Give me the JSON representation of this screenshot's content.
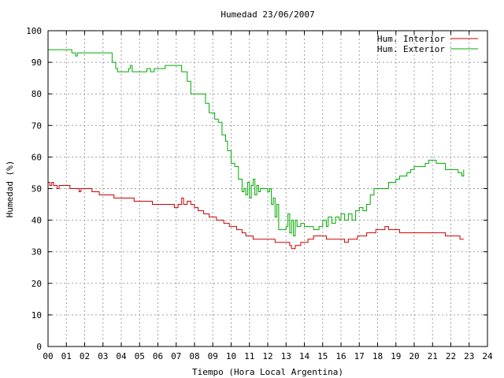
{
  "chart_data": {
    "type": "line",
    "title": "Humedad 23/06/2007",
    "xlabel": "Tiempo (Hora Local Argentina)",
    "ylabel": "Humedad (%)",
    "xlim": [
      0,
      24
    ],
    "ylim": [
      0,
      100
    ],
    "x_ticks": [
      "00",
      "01",
      "02",
      "03",
      "04",
      "05",
      "06",
      "07",
      "08",
      "09",
      "10",
      "11",
      "12",
      "13",
      "14",
      "15",
      "16",
      "17",
      "18",
      "19",
      "20",
      "21",
      "22",
      "23",
      "24"
    ],
    "y_ticks": [
      "0",
      "10",
      "20",
      "30",
      "40",
      "50",
      "60",
      "70",
      "80",
      "90",
      "100"
    ],
    "grid": true,
    "legend_position": "top-right",
    "series": [
      {
        "name": "Hum. Interior",
        "color": "#cc0000",
        "points": [
          [
            0,
            52
          ],
          [
            0.1,
            51
          ],
          [
            0.2,
            52
          ],
          [
            0.3,
            51
          ],
          [
            0.4,
            51
          ],
          [
            0.5,
            50
          ],
          [
            0.6,
            51
          ],
          [
            1.0,
            51
          ],
          [
            1.2,
            50
          ],
          [
            1.6,
            50
          ],
          [
            1.7,
            49
          ],
          [
            1.8,
            50
          ],
          [
            2.2,
            50
          ],
          [
            2.4,
            49
          ],
          [
            2.6,
            49
          ],
          [
            2.8,
            48
          ],
          [
            3.5,
            48
          ],
          [
            3.6,
            47
          ],
          [
            4.6,
            47
          ],
          [
            4.7,
            46
          ],
          [
            5.6,
            46
          ],
          [
            5.7,
            45
          ],
          [
            6.7,
            45
          ],
          [
            6.9,
            44
          ],
          [
            7.1,
            45
          ],
          [
            7.3,
            47
          ],
          [
            7.4,
            45
          ],
          [
            7.6,
            46
          ],
          [
            7.8,
            45
          ],
          [
            8.0,
            44
          ],
          [
            8.2,
            43
          ],
          [
            8.5,
            42
          ],
          [
            8.8,
            41
          ],
          [
            9.2,
            40
          ],
          [
            9.6,
            39
          ],
          [
            9.9,
            38
          ],
          [
            10.3,
            37
          ],
          [
            10.6,
            36
          ],
          [
            10.8,
            35
          ],
          [
            11.2,
            34
          ],
          [
            12.2,
            34
          ],
          [
            12.4,
            33
          ],
          [
            13.0,
            33
          ],
          [
            13.2,
            32
          ],
          [
            13.3,
            31
          ],
          [
            13.5,
            32
          ],
          [
            13.8,
            33
          ],
          [
            14.2,
            34
          ],
          [
            14.5,
            35
          ],
          [
            15.0,
            35
          ],
          [
            15.2,
            34
          ],
          [
            16.0,
            34
          ],
          [
            16.2,
            33
          ],
          [
            16.4,
            34
          ],
          [
            16.8,
            34
          ],
          [
            16.9,
            35
          ],
          [
            17.2,
            35
          ],
          [
            17.4,
            36
          ],
          [
            17.8,
            36
          ],
          [
            17.9,
            37
          ],
          [
            18.2,
            37
          ],
          [
            18.4,
            38
          ],
          [
            18.6,
            37
          ],
          [
            18.8,
            37
          ],
          [
            19.0,
            37
          ],
          [
            19.2,
            36
          ],
          [
            21.5,
            36
          ],
          [
            21.7,
            35
          ],
          [
            22.4,
            35
          ],
          [
            22.5,
            34
          ],
          [
            22.7,
            34
          ]
        ]
      },
      {
        "name": "Hum. Exterior",
        "color": "#00aa00",
        "points": [
          [
            0,
            94
          ],
          [
            1.2,
            94
          ],
          [
            1.3,
            93
          ],
          [
            1.4,
            93
          ],
          [
            1.5,
            92
          ],
          [
            1.6,
            93
          ],
          [
            3.2,
            93
          ],
          [
            3.5,
            90
          ],
          [
            3.7,
            88
          ],
          [
            3.8,
            87
          ],
          [
            4.2,
            87
          ],
          [
            4.4,
            88
          ],
          [
            4.5,
            89
          ],
          [
            4.6,
            87
          ],
          [
            5.3,
            87
          ],
          [
            5.4,
            88
          ],
          [
            5.6,
            87
          ],
          [
            5.8,
            88
          ],
          [
            6.3,
            88
          ],
          [
            6.4,
            89
          ],
          [
            7.1,
            89
          ],
          [
            7.3,
            87
          ],
          [
            7.6,
            84
          ],
          [
            7.8,
            80
          ],
          [
            8.3,
            80
          ],
          [
            8.6,
            77
          ],
          [
            8.8,
            74
          ],
          [
            9.1,
            72
          ],
          [
            9.3,
            71
          ],
          [
            9.5,
            67
          ],
          [
            9.7,
            65
          ],
          [
            9.8,
            62
          ],
          [
            10.0,
            58
          ],
          [
            10.2,
            57
          ],
          [
            10.4,
            53
          ],
          [
            10.6,
            49
          ],
          [
            10.7,
            50
          ],
          [
            10.8,
            48
          ],
          [
            10.9,
            52
          ],
          [
            11.0,
            47
          ],
          [
            11.1,
            51
          ],
          [
            11.2,
            53
          ],
          [
            11.3,
            48
          ],
          [
            11.4,
            51
          ],
          [
            11.5,
            49
          ],
          [
            11.6,
            50
          ],
          [
            11.8,
            50
          ],
          [
            12.0,
            49
          ],
          [
            12.1,
            50
          ],
          [
            12.2,
            45
          ],
          [
            12.3,
            47
          ],
          [
            12.4,
            41
          ],
          [
            12.5,
            45
          ],
          [
            12.6,
            37
          ],
          [
            13.0,
            38
          ],
          [
            13.1,
            42
          ],
          [
            13.2,
            36
          ],
          [
            13.3,
            40
          ],
          [
            13.4,
            35
          ],
          [
            13.5,
            40
          ],
          [
            13.6,
            38
          ],
          [
            13.8,
            39
          ],
          [
            14.0,
            38
          ],
          [
            14.5,
            37
          ],
          [
            14.8,
            38
          ],
          [
            15.0,
            40
          ],
          [
            15.2,
            38
          ],
          [
            15.3,
            41
          ],
          [
            15.5,
            39
          ],
          [
            15.7,
            41
          ],
          [
            15.9,
            40
          ],
          [
            16.0,
            42
          ],
          [
            16.2,
            40
          ],
          [
            16.4,
            42
          ],
          [
            16.6,
            40
          ],
          [
            16.8,
            43
          ],
          [
            17.0,
            44
          ],
          [
            17.2,
            43
          ],
          [
            17.4,
            45
          ],
          [
            17.6,
            48
          ],
          [
            17.8,
            50
          ],
          [
            18.3,
            50
          ],
          [
            18.6,
            52
          ],
          [
            19.0,
            53
          ],
          [
            19.2,
            54
          ],
          [
            19.6,
            55
          ],
          [
            19.8,
            56
          ],
          [
            20.0,
            57
          ],
          [
            20.4,
            57
          ],
          [
            20.6,
            58
          ],
          [
            20.8,
            59
          ],
          [
            21.2,
            58
          ],
          [
            21.5,
            58
          ],
          [
            21.7,
            56
          ],
          [
            22.2,
            56
          ],
          [
            22.4,
            55
          ],
          [
            22.6,
            54
          ],
          [
            22.7,
            56
          ]
        ]
      }
    ]
  }
}
